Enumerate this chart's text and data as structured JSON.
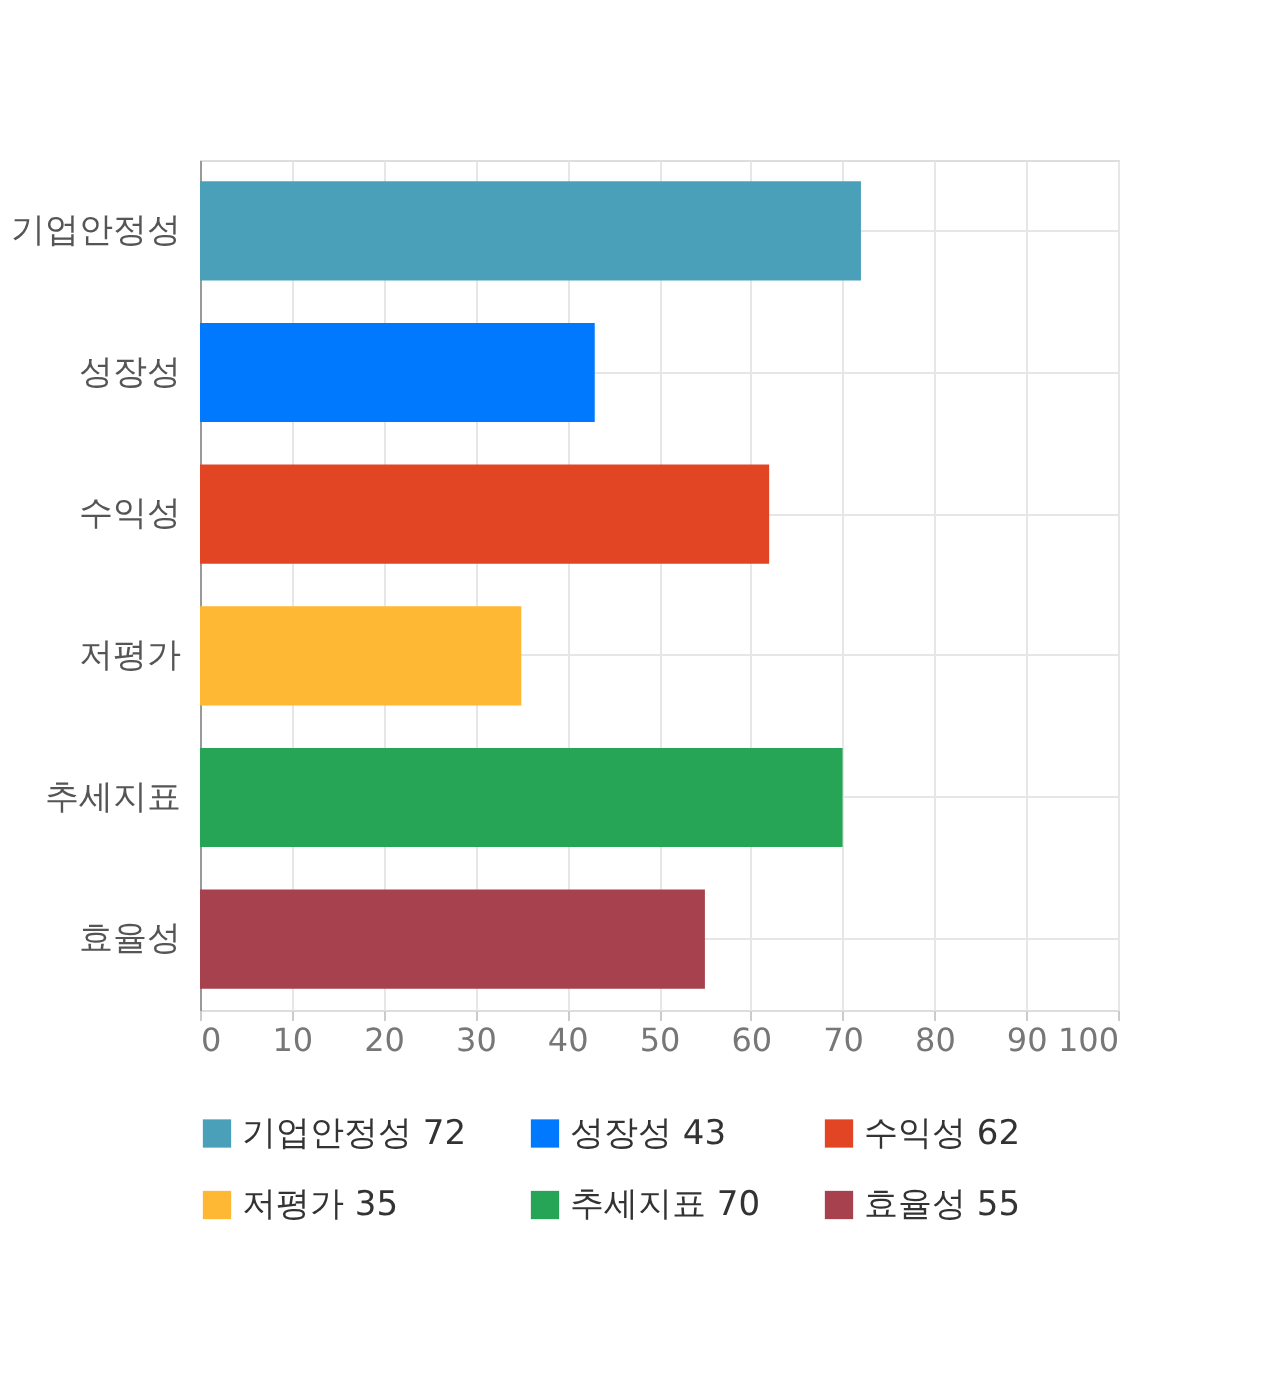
{
  "chart_data": {
    "type": "bar",
    "orientation": "horizontal",
    "categories": [
      "기업안정성",
      "성장성",
      "수익성",
      "저평가",
      "추세지표",
      "효율성"
    ],
    "series": [
      {
        "name": "기업안정성 72",
        "color": "#4aa0b9",
        "values": [
          72,
          null,
          null,
          null,
          null,
          null
        ]
      },
      {
        "name": "성장성 43",
        "color": "#0079ff",
        "values": [
          null,
          43,
          null,
          null,
          null,
          null
        ]
      },
      {
        "name": "수익성 62",
        "color": "#e14524",
        "values": [
          null,
          null,
          62,
          null,
          null,
          null
        ]
      },
      {
        "name": "저평가 35",
        "color": "#ffb833",
        "values": [
          null,
          null,
          null,
          35,
          null,
          null
        ]
      },
      {
        "name": "추세지표 70",
        "color": "#27a557",
        "values": [
          null,
          null,
          null,
          null,
          70,
          null
        ]
      },
      {
        "name": "효율성 55",
        "color": "#a6414d",
        "values": [
          null,
          null,
          null,
          null,
          null,
          55
        ]
      }
    ],
    "xlim": [
      0,
      100
    ],
    "xticks": [
      0,
      10,
      20,
      30,
      40,
      50,
      60,
      70,
      80,
      90,
      100
    ],
    "grid": true,
    "legend": "bottom"
  }
}
